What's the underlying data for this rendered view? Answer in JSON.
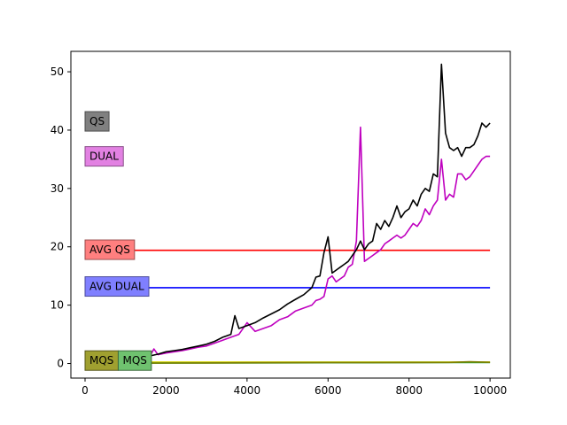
{
  "chart_data": {
    "type": "line",
    "title": "",
    "xlabel": "",
    "ylabel": "",
    "xlim": [
      -350,
      10500
    ],
    "ylim": [
      -2.5,
      53.5
    ],
    "xticks": [
      0,
      2000,
      4000,
      6000,
      8000,
      10000
    ],
    "yticks": [
      0,
      10,
      20,
      30,
      40,
      50
    ],
    "grid": false,
    "series": [
      {
        "name": "QS",
        "color": "#000000",
        "x": [
          0,
          200,
          400,
          600,
          800,
          1000,
          1200,
          1400,
          1600,
          1800,
          2000,
          2200,
          2400,
          2600,
          2800,
          3000,
          3200,
          3400,
          3600,
          3700,
          3800,
          4000,
          4200,
          4400,
          4600,
          4800,
          5000,
          5200,
          5400,
          5600,
          5700,
          5800,
          5900,
          6000,
          6100,
          6200,
          6300,
          6400,
          6500,
          6600,
          6700,
          6800,
          6900,
          7000,
          7100,
          7200,
          7300,
          7400,
          7500,
          7600,
          7700,
          7800,
          7900,
          8000,
          8100,
          8200,
          8300,
          8400,
          8500,
          8600,
          8700,
          8800,
          8900,
          9000,
          9100,
          9200,
          9300,
          9400,
          9500,
          9600,
          9700,
          9800,
          9900,
          10000
        ],
        "y": [
          0,
          0.1,
          0.2,
          0.3,
          0.4,
          0.5,
          0.8,
          1.0,
          1.3,
          1.6,
          2.0,
          2.2,
          2.4,
          2.7,
          3.0,
          3.3,
          3.8,
          4.5,
          5.0,
          8.2,
          6.0,
          6.5,
          7.0,
          7.8,
          8.5,
          9.2,
          10.2,
          11.0,
          11.8,
          13.0,
          14.8,
          15.0,
          19.0,
          21.7,
          15.5,
          16.0,
          16.5,
          17.0,
          17.5,
          18.5,
          19.5,
          21.0,
          19.5,
          20.5,
          21.0,
          24.0,
          23.0,
          24.5,
          23.5,
          25.0,
          27.0,
          25.0,
          26.0,
          26.5,
          28.0,
          27.0,
          29.0,
          30.0,
          29.5,
          32.5,
          32.0,
          51.3,
          39.5,
          37.0,
          36.5,
          37.0,
          35.5,
          37.0,
          37.0,
          37.5,
          39.0,
          41.2,
          40.5,
          41.2
        ]
      },
      {
        "name": "DUAL",
        "color": "#bf00bf",
        "x": [
          0,
          200,
          400,
          600,
          800,
          1000,
          1200,
          1400,
          1600,
          1700,
          1800,
          2000,
          2200,
          2400,
          2600,
          2800,
          3000,
          3200,
          3400,
          3600,
          3800,
          4000,
          4200,
          4400,
          4600,
          4800,
          5000,
          5200,
          5400,
          5600,
          5700,
          5800,
          5900,
          6000,
          6100,
          6200,
          6300,
          6400,
          6500,
          6600,
          6700,
          6800,
          6900,
          7000,
          7100,
          7200,
          7300,
          7400,
          7500,
          7600,
          7700,
          7800,
          7900,
          8000,
          8100,
          8200,
          8300,
          8400,
          8500,
          8600,
          8700,
          8800,
          8900,
          9000,
          9100,
          9200,
          9300,
          9400,
          9500,
          9600,
          9700,
          9800,
          9900,
          10000
        ],
        "y": [
          0,
          0.1,
          0.2,
          0.3,
          0.4,
          0.5,
          0.7,
          0.9,
          1.2,
          2.5,
          1.5,
          1.8,
          2.0,
          2.2,
          2.5,
          2.8,
          3.0,
          3.5,
          4.0,
          4.5,
          5.0,
          7.0,
          5.5,
          6.0,
          6.5,
          7.5,
          8.0,
          9.0,
          9.5,
          10.0,
          10.8,
          11.0,
          11.5,
          14.5,
          15.0,
          14.0,
          14.5,
          15.0,
          16.5,
          17.0,
          21.0,
          40.5,
          17.5,
          18.0,
          18.5,
          19.0,
          19.5,
          20.5,
          21.0,
          21.5,
          22.0,
          21.5,
          22.0,
          23.0,
          24.0,
          23.5,
          24.5,
          26.5,
          25.5,
          27.0,
          28.0,
          35.0,
          28.0,
          29.0,
          28.5,
          32.5,
          32.5,
          31.5,
          32.0,
          33.0,
          34.0,
          35.0,
          35.5,
          35.5
        ]
      },
      {
        "name": "AVG QS",
        "color": "#ff0000",
        "x": [
          0,
          10000
        ],
        "y": [
          19.4,
          19.4
        ]
      },
      {
        "name": "AVG DUAL",
        "color": "#0000ff",
        "x": [
          0,
          10000
        ],
        "y": [
          13.0,
          13.0
        ]
      },
      {
        "name": "MQS",
        "color": "#7f7f00",
        "x": [
          0,
          1000,
          2000,
          3000,
          4000,
          5000,
          6000,
          7000,
          8000,
          9000,
          9500,
          10000
        ],
        "y": [
          0,
          0.05,
          0.08,
          0.1,
          0.12,
          0.14,
          0.15,
          0.16,
          0.17,
          0.18,
          0.3,
          0.2
        ]
      },
      {
        "name": "MQS",
        "color": "#2ca02c",
        "x": [
          0,
          1000,
          2000,
          3000,
          4000,
          5000,
          6000,
          7000,
          8000,
          9000,
          10000
        ],
        "y": [
          0,
          0.04,
          0.06,
          0.08,
          0.1,
          0.11,
          0.12,
          0.13,
          0.14,
          0.15,
          0.16
        ]
      },
      {
        "name": "",
        "color": "#d4d400",
        "x": [
          0,
          1000,
          2000,
          3000,
          4000,
          5000,
          6000,
          7000,
          8000,
          9000,
          10000
        ],
        "y": [
          0.25,
          0.25,
          0.25,
          0.25,
          0.25,
          0.25,
          0.25,
          0.25,
          0.25,
          0.25,
          0.25
        ]
      }
    ],
    "labels": [
      {
        "text": "QS",
        "x": 0,
        "y": 41.5,
        "facecolor": "#808080",
        "edgecolor": "#4d4d4d"
      },
      {
        "text": "DUAL",
        "x": 0,
        "y": 35.5,
        "facecolor": "#e281e2",
        "edgecolor": "#8a4f8a"
      },
      {
        "text": "AVG QS",
        "x": 0,
        "y": 19.5,
        "facecolor": "#ff7f7f",
        "edgecolor": "#9a4d4d"
      },
      {
        "text": "AVG DUAL",
        "x": 0,
        "y": 13.2,
        "facecolor": "#7f7fff",
        "edgecolor": "#4d4d9a"
      },
      {
        "text": "MQS",
        "x": 0,
        "y": 0.5,
        "facecolor": "#a0a030",
        "edgecolor": "#5a5a1a"
      },
      {
        "text": "MQS",
        "x": 820,
        "y": 0.5,
        "facecolor": "#6fc26f",
        "edgecolor": "#3d6d3d"
      }
    ]
  }
}
